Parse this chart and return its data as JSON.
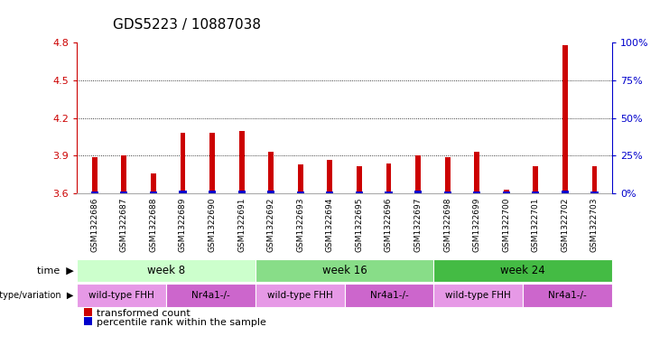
{
  "title": "GDS5223 / 10887038",
  "samples": [
    "GSM1322686",
    "GSM1322687",
    "GSM1322688",
    "GSM1322689",
    "GSM1322690",
    "GSM1322691",
    "GSM1322692",
    "GSM1322693",
    "GSM1322694",
    "GSM1322695",
    "GSM1322696",
    "GSM1322697",
    "GSM1322698",
    "GSM1322699",
    "GSM1322700",
    "GSM1322701",
    "GSM1322702",
    "GSM1322703"
  ],
  "red_values": [
    3.89,
    3.9,
    3.76,
    4.08,
    4.08,
    4.1,
    3.93,
    3.83,
    3.87,
    3.82,
    3.84,
    3.9,
    3.89,
    3.93,
    3.63,
    3.82,
    4.78,
    3.82
  ],
  "blue_percentile": [
    5,
    5,
    5,
    10,
    8,
    10,
    7,
    5,
    5,
    5,
    5,
    8,
    5,
    5,
    2,
    5,
    10,
    5
  ],
  "ymin": 3.6,
  "ymax": 4.8,
  "yticks": [
    3.6,
    3.9,
    4.2,
    4.5,
    4.8
  ],
  "right_yticks": [
    0,
    25,
    50,
    75,
    100
  ],
  "time_groups": [
    {
      "label": "week 8",
      "start": 0,
      "end": 5,
      "color": "#ccffcc"
    },
    {
      "label": "week 16",
      "start": 6,
      "end": 11,
      "color": "#88dd88"
    },
    {
      "label": "week 24",
      "start": 12,
      "end": 17,
      "color": "#44bb44"
    }
  ],
  "genotype_groups": [
    {
      "label": "wild-type FHH",
      "start": 0,
      "end": 2,
      "color": "#e699e6"
    },
    {
      "label": "Nr4a1-/-",
      "start": 3,
      "end": 5,
      "color": "#cc66cc"
    },
    {
      "label": "wild-type FHH",
      "start": 6,
      "end": 8,
      "color": "#e699e6"
    },
    {
      "label": "Nr4a1-/-",
      "start": 9,
      "end": 11,
      "color": "#cc66cc"
    },
    {
      "label": "wild-type FHH",
      "start": 12,
      "end": 14,
      "color": "#e699e6"
    },
    {
      "label": "Nr4a1-/-",
      "start": 15,
      "end": 17,
      "color": "#cc66cc"
    }
  ],
  "red_color": "#cc0000",
  "blue_color": "#0000cc",
  "label_color_red": "#cc0000",
  "label_color_blue": "#0000cc",
  "bar_width": 0.18,
  "blue_bar_width": 0.25
}
